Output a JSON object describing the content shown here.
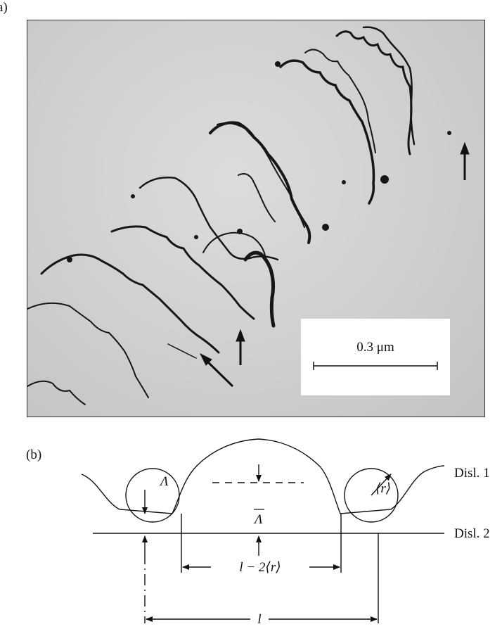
{
  "figure": {
    "panel_a_label": "a)",
    "panel_b_label": "(b)"
  },
  "micrograph": {
    "scale_bar_label": "0.3 μm"
  },
  "schematic": {
    "line_labels": {
      "upper": "Disl. 1",
      "lower": "Disl. 2"
    },
    "symbols": {
      "lambda": "Λ",
      "lambda_bar": "Λ",
      "radius": "⟨r⟩",
      "spacing_minus": "l − 2⟨r⟩",
      "spacing": "l"
    }
  }
}
